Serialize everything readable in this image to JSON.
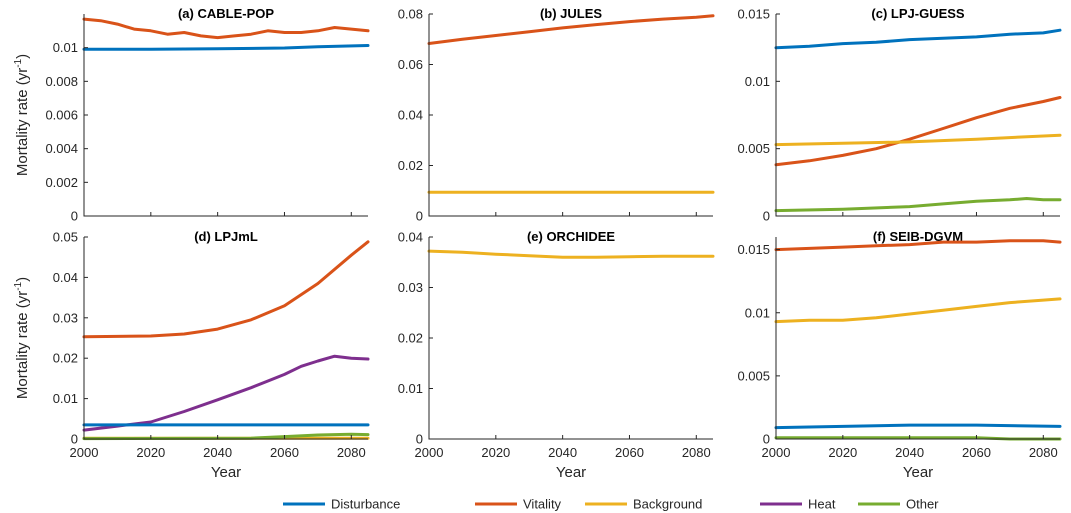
{
  "chart_data": {
    "type": "line",
    "xlabel": "Year",
    "ylabel": "Mortality rate (yr",
    "ylabel_sup": "-1",
    "ylabel_close": ")",
    "legend": [
      {
        "name": "Disturbance",
        "color": "#0072BD"
      },
      {
        "name": "Vitality",
        "color": "#D95319"
      },
      {
        "name": "Background",
        "color": "#EDB120"
      },
      {
        "name": "Heat",
        "color": "#7E2F8E"
      },
      {
        "name": "Other",
        "color": "#77AC30"
      }
    ],
    "panels": [
      {
        "title": "(a) CABLE-POP",
        "xlim": [
          2000,
          2085
        ],
        "ylim": [
          0,
          0.012
        ],
        "xticks": [
          "2000",
          "2020",
          "2040",
          "2060",
          "2080"
        ],
        "yticks": [
          "0",
          "0.002",
          "0.004",
          "0.006",
          "0.008",
          "0.01"
        ],
        "yticks_values": [
          0,
          0.002,
          0.004,
          0.006,
          0.008,
          0.01
        ],
        "series": [
          {
            "name": "Disturbance",
            "color": "#0072BD",
            "x": [
              2000,
              2020,
              2040,
              2060,
              2070,
              2085
            ],
            "y": [
              0.0099,
              0.0099,
              0.00993,
              0.00998,
              0.01005,
              0.01013
            ]
          },
          {
            "name": "Vitality",
            "color": "#D95319",
            "x": [
              2000,
              2005,
              2010,
              2015,
              2020,
              2025,
              2030,
              2035,
              2040,
              2045,
              2050,
              2055,
              2060,
              2065,
              2070,
              2075,
              2080,
              2085
            ],
            "y": [
              0.0117,
              0.0116,
              0.0114,
              0.0111,
              0.011,
              0.0108,
              0.0109,
              0.0107,
              0.0106,
              0.0107,
              0.0108,
              0.011,
              0.0109,
              0.0109,
              0.011,
              0.0112,
              0.0111,
              0.011
            ]
          }
        ]
      },
      {
        "title": "(b) JULES",
        "xlim": [
          2000,
          2085
        ],
        "ylim": [
          0,
          0.08
        ],
        "xticks": [
          "2000",
          "2020",
          "2040",
          "2060",
          "2080"
        ],
        "yticks": [
          "0",
          "0.02",
          "0.04",
          "0.06",
          "0.08"
        ],
        "yticks_values": [
          0,
          0.02,
          0.04,
          0.06,
          0.08
        ],
        "series": [
          {
            "name": "Vitality",
            "color": "#D95319",
            "x": [
              2000,
              2010,
              2020,
              2030,
              2040,
              2050,
              2060,
              2070,
              2080,
              2085
            ],
            "y": [
              0.0683,
              0.07,
              0.0715,
              0.073,
              0.0745,
              0.0758,
              0.077,
              0.078,
              0.0787,
              0.0793
            ]
          },
          {
            "name": "Background",
            "color": "#EDB120",
            "x": [
              2000,
              2085
            ],
            "y": [
              0.0094,
              0.0094
            ]
          }
        ]
      },
      {
        "title": "(c) LPJ-GUESS",
        "xlim": [
          2000,
          2085
        ],
        "ylim": [
          0,
          0.015
        ],
        "xticks": [
          "2000",
          "2020",
          "2040",
          "2060",
          "2080"
        ],
        "yticks": [
          "0",
          "0.005",
          "0.01",
          "0.015"
        ],
        "yticks_values": [
          0,
          0.005,
          0.01,
          0.015
        ],
        "series": [
          {
            "name": "Disturbance",
            "color": "#0072BD",
            "x": [
              2000,
              2010,
              2020,
              2030,
              2040,
              2050,
              2060,
              2070,
              2080,
              2085
            ],
            "y": [
              0.0125,
              0.0126,
              0.0128,
              0.0129,
              0.0131,
              0.0132,
              0.0133,
              0.0135,
              0.0136,
              0.0138
            ]
          },
          {
            "name": "Vitality",
            "color": "#D95319",
            "x": [
              2000,
              2010,
              2020,
              2030,
              2040,
              2050,
              2060,
              2070,
              2080,
              2085
            ],
            "y": [
              0.0038,
              0.0041,
              0.0045,
              0.005,
              0.0057,
              0.0065,
              0.0073,
              0.008,
              0.0085,
              0.0088
            ]
          },
          {
            "name": "Background",
            "color": "#EDB120",
            "x": [
              2000,
              2020,
              2040,
              2060,
              2085
            ],
            "y": [
              0.0053,
              0.0054,
              0.0055,
              0.0057,
              0.006
            ]
          },
          {
            "name": "Other",
            "color": "#77AC30",
            "x": [
              2000,
              2020,
              2040,
              2050,
              2060,
              2070,
              2075,
              2080,
              2085
            ],
            "y": [
              0.0004,
              0.0005,
              0.0007,
              0.0009,
              0.0011,
              0.0012,
              0.0013,
              0.0012,
              0.0012
            ]
          }
        ]
      },
      {
        "title": "(d) LPJmL",
        "xlim": [
          2000,
          2085
        ],
        "ylim": [
          0,
          0.05
        ],
        "xticks": [
          "2000",
          "2020",
          "2040",
          "2060",
          "2080"
        ],
        "yticks": [
          "0",
          "0.01",
          "0.02",
          "0.03",
          "0.04",
          "0.05"
        ],
        "yticks_values": [
          0,
          0.01,
          0.02,
          0.03,
          0.04,
          0.05
        ],
        "series": [
          {
            "name": "Vitality",
            "color": "#D95319",
            "x": [
              2000,
              2010,
              2020,
              2030,
              2040,
              2050,
              2060,
              2070,
              2080,
              2085
            ],
            "y": [
              0.0253,
              0.0254,
              0.0255,
              0.026,
              0.0272,
              0.0295,
              0.033,
              0.0385,
              0.0455,
              0.0488
            ]
          },
          {
            "name": "Heat",
            "color": "#7E2F8E",
            "x": [
              2000,
              2010,
              2020,
              2030,
              2040,
              2050,
              2060,
              2065,
              2070,
              2075,
              2080,
              2085
            ],
            "y": [
              0.0022,
              0.0032,
              0.0042,
              0.0068,
              0.0097,
              0.0127,
              0.016,
              0.018,
              0.0193,
              0.0205,
              0.02,
              0.0198
            ]
          },
          {
            "name": "Disturbance",
            "color": "#0072BD",
            "x": [
              2000,
              2085
            ],
            "y": [
              0.0035,
              0.0035
            ]
          },
          {
            "name": "Background",
            "color": "#EDB120",
            "x": [
              2000,
              2085
            ],
            "y": [
              0.0002,
              0.0002
            ]
          },
          {
            "name": "Other",
            "color": "#77AC30",
            "x": [
              2000,
              2050,
              2060,
              2070,
              2080,
              2085
            ],
            "y": [
              0.0001,
              0.0002,
              0.0006,
              0.001,
              0.0012,
              0.0011
            ]
          }
        ]
      },
      {
        "title": "(e) ORCHIDEE",
        "xlim": [
          2000,
          2085
        ],
        "ylim": [
          0,
          0.04
        ],
        "xticks": [
          "2000",
          "2020",
          "2040",
          "2060",
          "2080"
        ],
        "yticks": [
          "0",
          "0.01",
          "0.02",
          "0.03",
          "0.04"
        ],
        "yticks_values": [
          0,
          0.01,
          0.02,
          0.03,
          0.04
        ],
        "series": [
          {
            "name": "Background",
            "color": "#EDB120",
            "x": [
              2000,
              2010,
              2020,
              2030,
              2040,
              2050,
              2060,
              2070,
              2085
            ],
            "y": [
              0.0372,
              0.037,
              0.0366,
              0.0363,
              0.036,
              0.036,
              0.0361,
              0.0362,
              0.0362
            ]
          }
        ]
      },
      {
        "title": "(f) SEIB-DGVM",
        "xlim": [
          2000,
          2085
        ],
        "ylim": [
          0,
          0.016
        ],
        "xticks": [
          "2000",
          "2020",
          "2040",
          "2060",
          "2080"
        ],
        "yticks": [
          "0",
          "0.005",
          "0.01",
          "0.015"
        ],
        "yticks_values": [
          0,
          0.005,
          0.01,
          0.015
        ],
        "series": [
          {
            "name": "Vitality",
            "color": "#D95319",
            "x": [
              2000,
              2010,
              2020,
              2030,
              2040,
              2050,
              2060,
              2070,
              2080,
              2085
            ],
            "y": [
              0.015,
              0.0151,
              0.0152,
              0.0153,
              0.0154,
              0.0156,
              0.0156,
              0.0157,
              0.0157,
              0.0156
            ]
          },
          {
            "name": "Background",
            "color": "#EDB120",
            "x": [
              2000,
              2010,
              2020,
              2030,
              2040,
              2050,
              2060,
              2070,
              2080,
              2085
            ],
            "y": [
              0.0093,
              0.0094,
              0.0094,
              0.0096,
              0.0099,
              0.0102,
              0.0105,
              0.0108,
              0.011,
              0.0111
            ]
          },
          {
            "name": "Disturbance",
            "color": "#0072BD",
            "x": [
              2000,
              2020,
              2040,
              2060,
              2085
            ],
            "y": [
              0.0009,
              0.001,
              0.0011,
              0.0011,
              0.001
            ]
          },
          {
            "name": "Other",
            "color": "#77AC30",
            "x": [
              2000,
              2020,
              2040,
              2060,
              2070,
              2085
            ],
            "y": [
              0.0001,
              0.0001,
              0.0001,
              0.0001,
              0.0,
              0.0
            ]
          }
        ]
      }
    ]
  }
}
